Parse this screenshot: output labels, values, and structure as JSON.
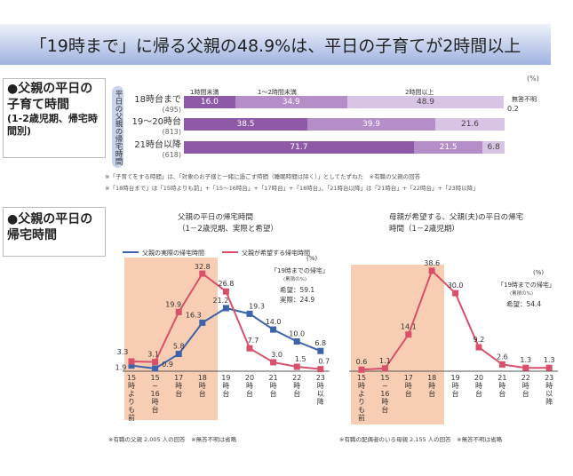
{
  "title": "「19時まで」に帰る父親の48.9%は、平日の子育てが2時間以上",
  "section1": {
    "heading": "●父親の平日の子育て時間",
    "sub": "(1-2歳児期、帰宅時間別)",
    "axis_label": "平日の父親の帰宅時間",
    "unit": "(%)",
    "legend": [
      "1時間未満",
      "1～2時間未満",
      "2時間以上"
    ],
    "no_answer_label": "無答不明",
    "no_answer_value": "0.2",
    "colors": [
      "#8e5aa8",
      "#b58ec9",
      "#d8c4e4"
    ],
    "notes": [
      "※「子育てをする時間」は、「対象のお子様と一緒に過ごす時間（睡眠時間は除く）」としてたずねた　※有職の父親の回答",
      "※「18時台まで」は「15時よりも前」+「15～16時台」+「17時台」+「18時台」、「21時台以降」は「21時台」+「22時台」+「23時以降」"
    ]
  },
  "section2": {
    "heading": "●父親の平日の帰宅時間"
  },
  "chart_data": [
    {
      "type": "bar",
      "stacked": true,
      "orientation": "horizontal",
      "categories": [
        "18時台まで",
        "19～20時台",
        "21時台以降"
      ],
      "counts": [
        "(495)",
        "(813)",
        "(618)"
      ],
      "series": [
        {
          "name": "1時間未満",
          "values": [
            16.0,
            38.5,
            71.7
          ]
        },
        {
          "name": "1～2時間未満",
          "values": [
            34.9,
            39.9,
            21.5
          ]
        },
        {
          "name": "2時間以上",
          "values": [
            48.9,
            21.6,
            6.8
          ]
        }
      ],
      "xlim": [
        0,
        100
      ]
    },
    {
      "type": "line",
      "title": "父親の平日の帰宅時間",
      "subtitle": "（1－2歳児期、実際と希望）",
      "unit": "(%)",
      "categories": [
        "15時よりも前",
        "15～16時台",
        "17時台",
        "18時台",
        "19時台",
        "20時台",
        "21時台",
        "22時台",
        "23時以降"
      ],
      "series": [
        {
          "name": "父親の実際の帰宅時間",
          "color": "#3d63a8",
          "values": [
            1.9,
            0.9,
            5.8,
            16.3,
            21.2,
            19.3,
            14.0,
            10.0,
            6.8
          ]
        },
        {
          "name": "父親が希望する帰宅時間",
          "color": "#d9506a",
          "values": [
            3.3,
            3.1,
            19.9,
            32.8,
            26.8,
            7.7,
            3.0,
            1.5,
            0.7
          ]
        }
      ],
      "annotation": {
        "head": "「19時までの帰宅」",
        "sub": "(累積の%)",
        "lines": [
          "希望：59.1",
          "実際：24.9"
        ]
      },
      "highlight": "15時よりも前～18時台",
      "ylim": [
        0,
        35
      ],
      "footnote": "※有職の父親 2,005 人の回答　※無答不明は省略"
    },
    {
      "type": "line",
      "title": "母親が希望する、父親(夫)の平日の帰宅",
      "subtitle": "時間（1－2歳児期）",
      "unit": "(%)",
      "categories": [
        "15時よりも前",
        "15～16時台",
        "17時台",
        "18時台",
        "19時台",
        "20時台",
        "21時台",
        "22時台",
        "23時以降"
      ],
      "series": [
        {
          "color": "#d9506a",
          "values": [
            0.6,
            1.1,
            14.1,
            38.6,
            30.0,
            9.2,
            2.6,
            1.3,
            1.3
          ]
        }
      ],
      "annotation": {
        "head": "「19時までの帰宅」",
        "sub": "(累積の%)",
        "lines": [
          "希望：54.4"
        ]
      },
      "highlight": "15時よりも前～18時台",
      "ylim": [
        0,
        40
      ],
      "footnote": "※有職の配偶者のいる母親 2,155 人の回答　※無答不明は省略"
    }
  ]
}
